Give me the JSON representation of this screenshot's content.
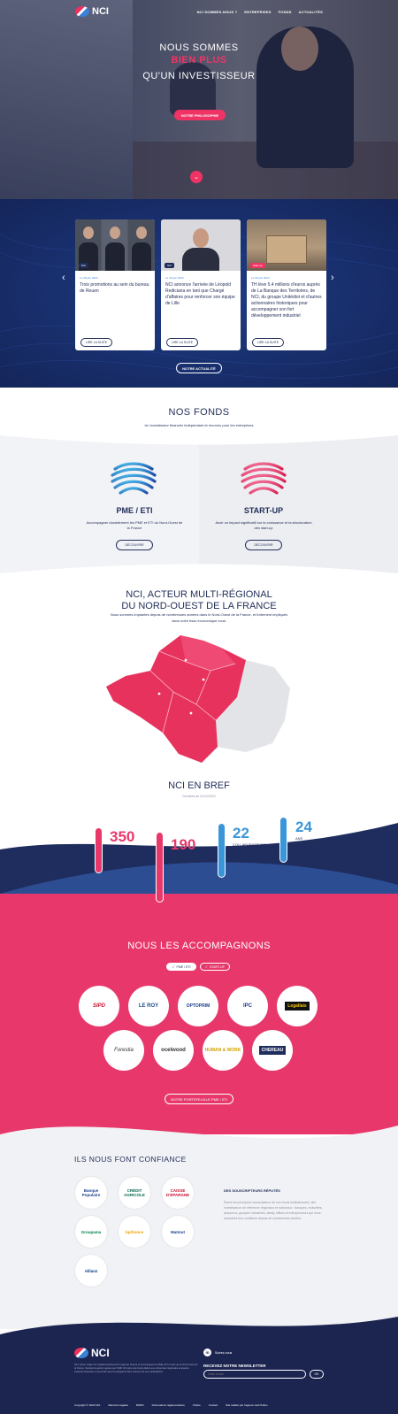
{
  "brand": {
    "name": "NCI"
  },
  "nav": {
    "items": [
      "NCI SOMMES-NOUS ?",
      "ENTREPRISES",
      "FONDS",
      "ACTUALITÉS"
    ]
  },
  "hero": {
    "line1": "NOUS SOMMES",
    "line2": "BIEN PLUS",
    "line3": "QU'UN INVESTISSEUR",
    "button": "NOTRE PHILOSOPHIE"
  },
  "news": {
    "cards": [
      {
        "tag": "NCI",
        "date": "Le 28 juin 2023",
        "text": "Trois promotions au sein du bureau de Rouen",
        "more": "LIRE LA SUITE"
      },
      {
        "tag": "NCI",
        "date": "Le 20 juin 2023",
        "text": "NCI annonce l'arrivée de Léopold Rediciana en tant que Chargé d'affaires pour renforcer son équipe de Lille",
        "more": "LIRE LA SUITE"
      },
      {
        "tag": "Start-up",
        "date": "Le 06 juin 2023",
        "text": "TH lève 5.4 millions d'euros auprès de La Banque des Territoires, de NCI, du groupe Unitédiot et d'autres actionnaires historiques pour accompagner son fort développement industriel",
        "more": "LIRE LA SUITE"
      }
    ],
    "button": "NOTRE ACTUALITÉ"
  },
  "fonds": {
    "title": "NOS FONDS",
    "subtitle": "Un investisseur financier indépendant et reconnu pour les entreprises",
    "items": [
      {
        "title": "PME / ETI",
        "desc": "Accompagner durablement les PME et ETI du Nord-Ouest de la France",
        "button": "DÉCOUVRIR"
      },
      {
        "title": "START-UP",
        "desc": "Avoir un impact significatif sur la croissance et la structuration des start-up",
        "button": "DÉCOUVRIR"
      }
    ]
  },
  "region": {
    "title_line1": "NCI, ACTEUR MULTI-RÉGIONAL",
    "title_line2": "DU NORD-OUEST DE LA FRANCE",
    "desc": "Nous sommes implantés depuis de nombreuses années dans le Nord-Ouest de la France, et fortement impliqués dans notre tissu économique local."
  },
  "bref": {
    "title": "NCI EN BREF",
    "subtitle": "Données au 31/12/2022",
    "stats": [
      {
        "num": "350",
        "label": "M€ SOUS GESTION"
      },
      {
        "num": "190",
        "label": "ENTREPRISES ACCOMPAGNÉES"
      },
      {
        "num": "22",
        "label": "COLLABORATEURS"
      },
      {
        "num": "24",
        "label": "ANS D'EXPÉRIENCE"
      }
    ]
  },
  "accompagnons": {
    "title": "NOUS LES ACCOMPAGNONS",
    "filters": [
      "PME / ETI",
      "START-UP"
    ],
    "logos": [
      "SIPD",
      "LE ROY",
      "OPTOPRIM",
      "IPC",
      "Legallais",
      "Forestia",
      "ocelwood",
      "HUMAN & WORK",
      "CHEREAU"
    ],
    "button": "NOTRE PORTEFEUILLE PME / ETI"
  },
  "confiance": {
    "title": "ILS NOUS FONT CONFIANCE",
    "logos": [
      "Banque Populaire",
      "CRÉDIT AGRICOLE",
      "CAISSE D'ÉPARGNE",
      "Groupama",
      "bpifrance",
      "Matmut",
      "Allianz"
    ],
    "heading": "DES SOUSCRIPTEURS RÉPUTÉS",
    "text": "Parmi les principaux souscripteurs de nos fonds institutionnels, des investisseurs de référence régionaux et nationaux : banques, mutuelles, assureurs, groupes industriels, family offices et entrepreneurs qui nous accordent leur confiance depuis de nombreuses années."
  },
  "footer": {
    "text": "NCI, acteur majeur du capital-investissement régional, finance et accompagne les PME, ETI et start-up du Nord-Ouest de la France. Société de gestion agréée par l'AMF, NCI gère des fonds dédiés aux entreprises régionales et associe expertise financière et proximité avec les dirigeants dans chacune de ses implantations.",
    "social": "Suivez-nous",
    "newsletter_title": "RECEVEZ NOTRE NEWSLETTER",
    "newsletter_placeholder": "Votre email",
    "newsletter_button": "OK",
    "links": [
      "Copyright © 2023 NCI",
      "Mentions légales",
      "RGPD",
      "Informations réglementaires",
      "Charte",
      "Contact",
      "Site réalisé par l'agence web Pollen"
    ]
  },
  "colors": {
    "navy": "#23305a",
    "pink": "#ef3465",
    "blue": "#3b82d6"
  }
}
